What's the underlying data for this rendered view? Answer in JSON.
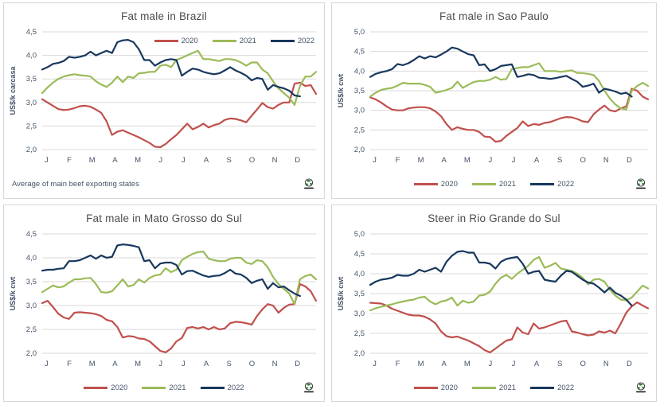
{
  "axis": {
    "text_color": "#44546A",
    "grid_color": "#D9D9D9"
  },
  "legend": {
    "items": [
      {
        "label": "2020",
        "color": "#C0504D"
      },
      {
        "label": "2021",
        "color": "#9BBB59"
      },
      {
        "label": "2022",
        "color": "#17375E"
      }
    ]
  },
  "chart_data": [
    {
      "type": "line",
      "title": "Fat male in Brazil",
      "ylabel": "US$/k carcasa",
      "footnote": "Average of main beef exporting states",
      "legend_position": "top-right-inside",
      "ylim": [
        2.0,
        4.5
      ],
      "yticks": [
        "4,5",
        "4,0",
        "3,5",
        "3,0",
        "2,5",
        "2,0"
      ],
      "months": [
        "J",
        "F",
        "M",
        "A",
        "M",
        "J",
        "J",
        "A",
        "S",
        "O",
        "N",
        "D"
      ],
      "series": [
        {
          "name": "2020",
          "color": "#C0504D",
          "values": [
            3.07,
            3.0,
            2.93,
            2.86,
            2.84,
            2.85,
            2.88,
            2.92,
            2.93,
            2.91,
            2.85,
            2.78,
            2.6,
            2.31,
            2.38,
            2.41,
            2.36,
            2.31,
            2.26,
            2.2,
            2.14,
            2.06,
            2.05,
            2.12,
            2.22,
            2.31,
            2.43,
            2.55,
            2.43,
            2.48,
            2.55,
            2.47,
            2.52,
            2.55,
            2.63,
            2.66,
            2.65,
            2.62,
            2.58,
            2.72,
            2.85,
            2.99,
            2.9,
            2.87,
            2.95,
            3.0,
            3.0,
            3.4,
            3.42,
            3.35,
            3.37,
            3.18
          ]
        },
        {
          "name": "2021",
          "color": "#9BBB59",
          "values": [
            3.2,
            3.32,
            3.42,
            3.5,
            3.55,
            3.58,
            3.6,
            3.58,
            3.57,
            3.55,
            3.45,
            3.38,
            3.33,
            3.42,
            3.55,
            3.43,
            3.55,
            3.52,
            3.62,
            3.63,
            3.65,
            3.65,
            3.78,
            3.8,
            3.75,
            3.9,
            3.95,
            4.0,
            4.05,
            4.1,
            3.92,
            3.92,
            3.9,
            3.88,
            3.92,
            3.92,
            3.9,
            3.85,
            3.78,
            3.85,
            3.85,
            3.7,
            3.62,
            3.45,
            3.3,
            3.2,
            3.1,
            2.95,
            3.35,
            3.55,
            3.55,
            3.65
          ]
        },
        {
          "name": "2022",
          "color": "#17375E",
          "values": [
            3.7,
            3.75,
            3.82,
            3.84,
            3.88,
            3.97,
            3.95,
            3.97,
            4.0,
            4.08,
            4.0,
            4.05,
            4.1,
            4.05,
            4.28,
            4.32,
            4.33,
            4.28,
            4.13,
            3.9,
            3.9,
            3.78,
            3.85,
            3.9,
            3.92,
            3.9,
            3.57,
            3.65,
            3.72,
            3.7,
            3.65,
            3.62,
            3.6,
            3.62,
            3.68,
            3.75,
            3.68,
            3.63,
            3.57,
            3.47,
            3.52,
            3.5,
            3.27,
            3.37,
            3.33,
            3.3,
            3.25,
            3.15,
            3.13
          ]
        }
      ]
    },
    {
      "type": "line",
      "title": "Fat male in Sao Paulo",
      "ylabel": "US$/k cwt",
      "legend_position": "bottom-center",
      "ylim": [
        2.0,
        5.0
      ],
      "yticks": [
        "5,0",
        "4,5",
        "4,0",
        "3,5",
        "3,0",
        "2,5",
        "2,0"
      ],
      "months": [
        "J",
        "F",
        "M",
        "A",
        "M",
        "J",
        "J",
        "A",
        "S",
        "O",
        "N",
        "D"
      ],
      "series": [
        {
          "name": "2020",
          "color": "#C0504D",
          "values": [
            3.33,
            3.28,
            3.2,
            3.1,
            3.02,
            3.0,
            3.0,
            3.05,
            3.07,
            3.08,
            3.08,
            3.05,
            2.97,
            2.85,
            2.65,
            2.5,
            2.57,
            2.53,
            2.5,
            2.5,
            2.45,
            2.33,
            2.32,
            2.2,
            2.22,
            2.35,
            2.45,
            2.55,
            2.72,
            2.6,
            2.65,
            2.63,
            2.68,
            2.7,
            2.75,
            2.8,
            2.83,
            2.82,
            2.78,
            2.72,
            2.7,
            2.9,
            3.02,
            3.12,
            3.0,
            2.97,
            3.05,
            3.1,
            3.55,
            3.5,
            3.35,
            3.28
          ]
        },
        {
          "name": "2021",
          "color": "#9BBB59",
          "values": [
            3.35,
            3.45,
            3.52,
            3.55,
            3.57,
            3.63,
            3.7,
            3.68,
            3.68,
            3.68,
            3.65,
            3.6,
            3.45,
            3.48,
            3.52,
            3.57,
            3.73,
            3.57,
            3.65,
            3.72,
            3.75,
            3.75,
            3.78,
            3.85,
            3.78,
            3.8,
            4.05,
            4.08,
            4.1,
            4.1,
            4.15,
            4.2,
            4.0,
            4.0,
            4.0,
            3.98,
            4.0,
            4.02,
            3.95,
            3.95,
            3.93,
            3.9,
            3.75,
            3.5,
            3.3,
            3.15,
            3.05,
            3.02,
            3.5,
            3.62,
            3.7,
            3.62
          ]
        },
        {
          "name": "2022",
          "color": "#17375E",
          "values": [
            3.85,
            3.93,
            3.97,
            4.0,
            4.05,
            4.18,
            4.15,
            4.2,
            4.28,
            4.38,
            4.32,
            4.38,
            4.35,
            4.42,
            4.5,
            4.6,
            4.57,
            4.5,
            4.43,
            4.4,
            4.15,
            4.17,
            4.0,
            4.05,
            4.13,
            4.15,
            4.17,
            3.85,
            3.88,
            3.92,
            3.9,
            3.83,
            3.82,
            3.8,
            3.82,
            3.85,
            3.88,
            3.8,
            3.73,
            3.6,
            3.63,
            3.68,
            3.45,
            3.55,
            3.52,
            3.48,
            3.42,
            3.45,
            3.35
          ]
        }
      ]
    },
    {
      "type": "line",
      "title": "Fat male in Mato Grosso do Sul",
      "ylabel": "US$/k cwt",
      "legend_position": "bottom-center",
      "ylim": [
        2.0,
        4.5
      ],
      "yticks": [
        "4,5",
        "4,0",
        "3,5",
        "3,0",
        "2,5",
        "2,0"
      ],
      "months": [
        "J",
        "F",
        "M",
        "A",
        "M",
        "J",
        "J",
        "A",
        "S",
        "O",
        "N",
        "D"
      ],
      "series": [
        {
          "name": "2020",
          "color": "#C0504D",
          "values": [
            3.05,
            3.1,
            2.97,
            2.83,
            2.75,
            2.72,
            2.85,
            2.86,
            2.85,
            2.84,
            2.82,
            2.78,
            2.7,
            2.67,
            2.55,
            2.33,
            2.36,
            2.35,
            2.31,
            2.3,
            2.25,
            2.15,
            2.05,
            2.02,
            2.1,
            2.25,
            2.32,
            2.53,
            2.55,
            2.52,
            2.55,
            2.5,
            2.55,
            2.5,
            2.52,
            2.63,
            2.66,
            2.65,
            2.63,
            2.6,
            2.78,
            2.92,
            3.03,
            3.0,
            2.85,
            2.95,
            3.02,
            3.03,
            3.45,
            3.4,
            3.3,
            3.1
          ]
        },
        {
          "name": "2021",
          "color": "#9BBB59",
          "values": [
            3.28,
            3.35,
            3.42,
            3.38,
            3.4,
            3.48,
            3.55,
            3.55,
            3.57,
            3.58,
            3.45,
            3.28,
            3.27,
            3.3,
            3.42,
            3.55,
            3.4,
            3.43,
            3.55,
            3.48,
            3.58,
            3.63,
            3.65,
            3.78,
            3.7,
            3.75,
            3.95,
            4.02,
            4.08,
            4.12,
            4.13,
            3.98,
            3.95,
            3.93,
            3.93,
            3.98,
            4.0,
            4.0,
            3.9,
            3.87,
            3.95,
            3.93,
            3.8,
            3.6,
            3.45,
            3.35,
            3.25,
            3.03,
            3.55,
            3.62,
            3.65,
            3.55
          ]
        },
        {
          "name": "2022",
          "color": "#17375E",
          "values": [
            3.73,
            3.75,
            3.75,
            3.77,
            3.78,
            3.93,
            3.93,
            3.95,
            4.0,
            4.05,
            3.98,
            4.05,
            4.0,
            4.02,
            4.26,
            4.28,
            4.27,
            4.25,
            4.22,
            3.93,
            3.95,
            3.78,
            3.88,
            3.9,
            3.9,
            3.85,
            3.65,
            3.72,
            3.73,
            3.68,
            3.63,
            3.6,
            3.62,
            3.63,
            3.68,
            3.75,
            3.67,
            3.65,
            3.58,
            3.47,
            3.52,
            3.55,
            3.35,
            3.47,
            3.38,
            3.4,
            3.32,
            3.25,
            3.2
          ]
        }
      ]
    },
    {
      "type": "line",
      "title": "Steer in Rio Grande do Sul",
      "ylabel": "US$/k cwt",
      "legend_position": "bottom-center",
      "ylim": [
        2.0,
        5.0
      ],
      "yticks": [
        "5,0",
        "4,5",
        "4,0",
        "3,5",
        "3,0",
        "2,5",
        "2,0"
      ],
      "months": [
        "J",
        "F",
        "M",
        "A",
        "M",
        "J",
        "J",
        "A",
        "S",
        "O",
        "N",
        "D"
      ],
      "series": [
        {
          "name": "2020",
          "color": "#C0504D",
          "values": [
            3.27,
            3.26,
            3.25,
            3.2,
            3.12,
            3.07,
            3.02,
            2.97,
            2.95,
            2.95,
            2.92,
            2.85,
            2.75,
            2.55,
            2.43,
            2.4,
            2.42,
            2.37,
            2.32,
            2.25,
            2.18,
            2.08,
            2.02,
            2.12,
            2.22,
            2.32,
            2.35,
            2.65,
            2.52,
            2.48,
            2.75,
            2.62,
            2.65,
            2.7,
            2.75,
            2.8,
            2.82,
            2.55,
            2.52,
            2.48,
            2.45,
            2.47,
            2.55,
            2.52,
            2.57,
            2.5,
            2.75,
            3.02,
            3.18,
            3.28,
            3.2,
            3.13
          ]
        },
        {
          "name": "2021",
          "color": "#9BBB59",
          "values": [
            3.08,
            3.13,
            3.17,
            3.2,
            3.23,
            3.27,
            3.3,
            3.33,
            3.35,
            3.4,
            3.42,
            3.3,
            3.23,
            3.3,
            3.33,
            3.4,
            3.2,
            3.32,
            3.27,
            3.3,
            3.45,
            3.47,
            3.55,
            3.75,
            3.9,
            3.97,
            3.87,
            4.0,
            4.1,
            4.2,
            4.35,
            4.42,
            4.15,
            4.2,
            4.27,
            4.13,
            4.1,
            4.07,
            4.0,
            3.9,
            3.73,
            3.85,
            3.87,
            3.8,
            3.6,
            3.45,
            3.35,
            3.33,
            3.4,
            3.55,
            3.7,
            3.63
          ]
        },
        {
          "name": "2022",
          "color": "#17375E",
          "values": [
            3.72,
            3.8,
            3.85,
            3.87,
            3.9,
            3.97,
            3.95,
            3.95,
            4.0,
            4.1,
            4.05,
            4.1,
            4.15,
            4.05,
            4.3,
            4.45,
            4.55,
            4.57,
            4.53,
            4.53,
            4.28,
            4.28,
            4.25,
            4.13,
            4.3,
            4.37,
            4.4,
            4.42,
            4.25,
            4.0,
            4.05,
            4.07,
            3.85,
            3.82,
            3.8,
            3.95,
            4.07,
            4.05,
            3.95,
            3.85,
            3.78,
            3.75,
            3.65,
            3.53,
            3.65,
            3.52,
            3.45,
            3.35,
            3.2
          ]
        }
      ]
    }
  ]
}
